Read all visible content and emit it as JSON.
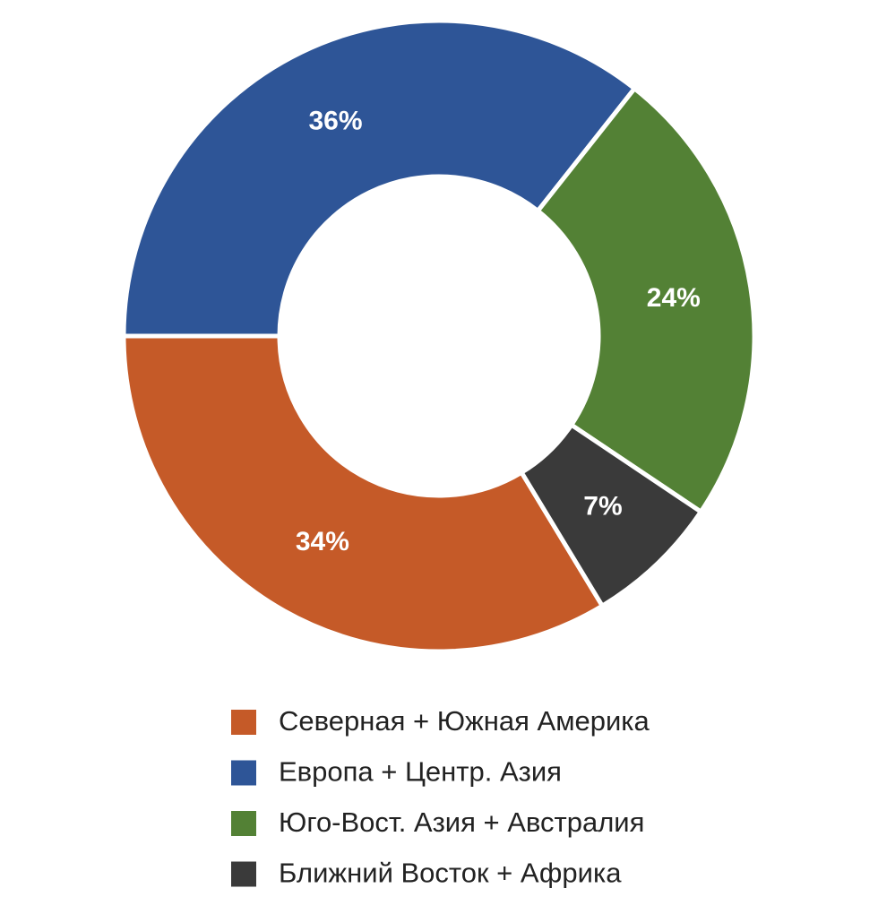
{
  "chart_data": {
    "type": "donut",
    "categories": [
      "Северная + Южная Америка",
      "Европа + Центр. Азия",
      "Юго-Вост. Азия + Австралия",
      "Ближний Восток + Африка"
    ],
    "values": [
      34,
      36,
      24,
      7
    ],
    "value_labels": [
      "34%",
      "36%",
      "24%",
      "7%"
    ],
    "colors": [
      "#c55a28",
      "#2e5597",
      "#538135",
      "#3a3a3a"
    ]
  }
}
